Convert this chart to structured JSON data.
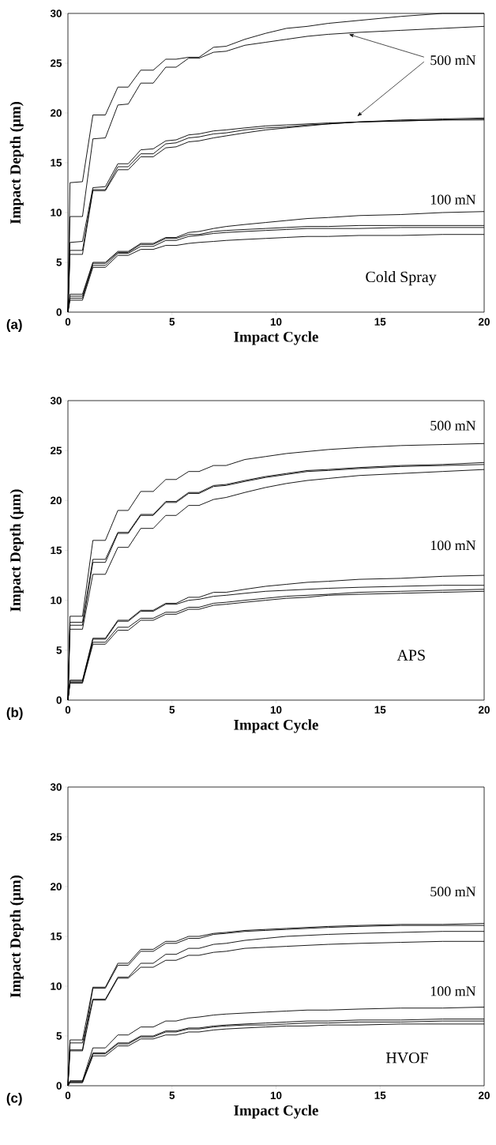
{
  "chart_data": [
    {
      "type": "line",
      "xlabel": "Impact Cycle",
      "ylabel": "Impact Depth (μm)",
      "xlim": [
        0,
        20
      ],
      "ylim": [
        0,
        30
      ],
      "xticks": [
        0,
        5,
        10,
        15,
        20
      ],
      "yticks": [
        0,
        5,
        10,
        15,
        20,
        25,
        30
      ],
      "annotations": [
        {
          "text": "500 mN",
          "x": 13.5,
          "y": 27.9
        },
        "100 mN",
        "Cold Spray",
        "(a)"
      ],
      "x": [
        0,
        0.1,
        0.7,
        1.2,
        1.8,
        2.4,
        2.9,
        3.5,
        4.1,
        4.7,
        5.2,
        5.8,
        6.3,
        7,
        7.6,
        8.5,
        9.5,
        10.5,
        11.5,
        12.5,
        14,
        16,
        18,
        20
      ],
      "series": [
        {
          "color": "#000000",
          "values": [
            0,
            13,
            13.1,
            19.8,
            19.8,
            22.6,
            22.6,
            24.3,
            24.3,
            25.4,
            25.4,
            25.6,
            25.6,
            26.6,
            26.7,
            27.4,
            28,
            28.5,
            28.7,
            29,
            29.3,
            29.7,
            30,
            30
          ]
        },
        {
          "color": "#000000",
          "values": [
            0,
            9.6,
            9.6,
            17.4,
            17.5,
            20.8,
            20.9,
            23,
            23,
            24.6,
            24.6,
            25.5,
            25.5,
            26.1,
            26.2,
            26.8,
            27.1,
            27.4,
            27.7,
            27.9,
            28.1,
            28.3,
            28.5,
            28.7
          ]
        },
        {
          "color": "#000000",
          "values": [
            0,
            7,
            7.1,
            12.5,
            12.6,
            14.9,
            14.9,
            16.3,
            16.4,
            17.2,
            17.3,
            17.8,
            17.9,
            18.2,
            18.3,
            18.5,
            18.7,
            18.8,
            18.9,
            19,
            19.1,
            19.3,
            19.4,
            19.5
          ]
        },
        {
          "color": "#000000",
          "values": [
            0,
            6.2,
            6.2,
            12.3,
            12.3,
            14.6,
            14.6,
            15.9,
            15.9,
            16.9,
            17,
            17.5,
            17.6,
            17.9,
            18,
            18.3,
            18.5,
            18.6,
            18.8,
            18.9,
            19.1,
            19.2,
            19.3,
            19.4
          ]
        },
        {
          "color": "#000000",
          "values": [
            0,
            5.8,
            5.8,
            12.2,
            12.2,
            14.3,
            14.3,
            15.6,
            15.6,
            16.5,
            16.6,
            17.1,
            17.2,
            17.5,
            17.7,
            18,
            18.3,
            18.5,
            18.7,
            18.9,
            19.1,
            19.2,
            19.3,
            19.3
          ]
        },
        {
          "color": "#000000",
          "values": [
            0,
            1.8,
            1.8,
            5,
            5,
            6.1,
            6.1,
            6.9,
            6.9,
            7.5,
            7.5,
            8,
            8.1,
            8.4,
            8.6,
            8.8,
            9,
            9.2,
            9.4,
            9.5,
            9.7,
            9.8,
            10,
            10.1
          ]
        },
        {
          "color": "#000000",
          "values": [
            0,
            1.6,
            1.6,
            4.9,
            4.9,
            6,
            6,
            6.8,
            6.8,
            7.4,
            7.4,
            7.8,
            7.8,
            8.1,
            8.2,
            8.3,
            8.4,
            8.5,
            8.6,
            8.6,
            8.7,
            8.7,
            8.7,
            8.7
          ]
        },
        {
          "color": "#000000",
          "values": [
            0,
            1.4,
            1.4,
            4.7,
            4.7,
            5.9,
            5.9,
            6.6,
            6.6,
            7.2,
            7.2,
            7.6,
            7.7,
            7.9,
            8,
            8.1,
            8.2,
            8.3,
            8.4,
            8.4,
            8.4,
            8.5,
            8.5,
            8.5
          ]
        },
        {
          "color": "#000000",
          "values": [
            0,
            1.2,
            1.2,
            4.5,
            4.5,
            5.7,
            5.7,
            6.3,
            6.3,
            6.7,
            6.7,
            6.9,
            7,
            7.1,
            7.2,
            7.3,
            7.4,
            7.5,
            7.6,
            7.6,
            7.7,
            7.7,
            7.8,
            7.8
          ]
        }
      ]
    },
    {
      "type": "line",
      "xlabel": "Impact Cycle",
      "ylabel": "Impact Depth (μm)",
      "xlim": [
        0,
        20
      ],
      "ylim": [
        0,
        30
      ],
      "xticks": [
        0,
        5,
        10,
        15,
        20
      ],
      "yticks": [
        0,
        5,
        10,
        15,
        20,
        25,
        30
      ],
      "annotations": [
        "500 mN",
        "100 mN",
        "APS",
        "(b)"
      ],
      "x": [
        0,
        0.1,
        0.7,
        1.2,
        1.8,
        2.4,
        2.9,
        3.5,
        4.1,
        4.7,
        5.2,
        5.8,
        6.3,
        7,
        7.6,
        8.5,
        9.5,
        10.5,
        11.5,
        12.5,
        14,
        16,
        18,
        20
      ],
      "series": [
        {
          "color": "#000000",
          "values": [
            0,
            8.4,
            8.4,
            16,
            16,
            19,
            19,
            20.9,
            20.9,
            22.1,
            22.1,
            22.9,
            22.9,
            23.5,
            23.5,
            24.1,
            24.4,
            24.7,
            24.9,
            25.1,
            25.3,
            25.5,
            25.6,
            25.7
          ]
        },
        {
          "color": "#000000",
          "values": [
            0,
            7.8,
            7.8,
            14.1,
            14.1,
            16.8,
            16.8,
            18.6,
            18.6,
            19.9,
            19.9,
            20.8,
            20.8,
            21.5,
            21.6,
            22,
            22.4,
            22.7,
            23,
            23.1,
            23.3,
            23.5,
            23.6,
            23.8
          ]
        },
        {
          "color": "#000000",
          "values": [
            0,
            7.5,
            7.5,
            13.8,
            13.8,
            16.7,
            16.7,
            18.5,
            18.5,
            19.8,
            19.8,
            20.7,
            20.7,
            21.4,
            21.5,
            21.9,
            22.3,
            22.6,
            22.9,
            23,
            23.2,
            23.4,
            23.5,
            23.6
          ]
        },
        {
          "color": "#000000",
          "values": [
            0,
            7.1,
            7.1,
            12.6,
            12.6,
            15.3,
            15.3,
            17.2,
            17.2,
            18.5,
            18.5,
            19.5,
            19.5,
            20.1,
            20.3,
            20.8,
            21.3,
            21.7,
            22,
            22.2,
            22.5,
            22.7,
            22.9,
            23.1
          ]
        },
        {
          "color": "#000000",
          "values": [
            0,
            2,
            2,
            6.2,
            6.2,
            8,
            8,
            9,
            9,
            9.7,
            9.7,
            10.3,
            10.3,
            10.8,
            10.8,
            11.1,
            11.4,
            11.6,
            11.8,
            11.9,
            12.1,
            12.2,
            12.4,
            12.5
          ]
        },
        {
          "color": "#000000",
          "values": [
            0,
            1.9,
            1.9,
            6.1,
            6.1,
            7.9,
            7.9,
            8.9,
            8.9,
            9.6,
            9.6,
            10,
            10.1,
            10.4,
            10.5,
            10.7,
            10.9,
            11,
            11.1,
            11.2,
            11.3,
            11.4,
            11.5,
            11.5
          ]
        },
        {
          "color": "#000000",
          "values": [
            0,
            1.8,
            1.8,
            5.8,
            5.8,
            7.3,
            7.3,
            8.2,
            8.2,
            8.8,
            8.8,
            9.3,
            9.3,
            9.7,
            9.8,
            10,
            10.2,
            10.4,
            10.5,
            10.6,
            10.8,
            10.9,
            11,
            11.1
          ]
        },
        {
          "color": "#000000",
          "values": [
            0,
            1.7,
            1.7,
            5.6,
            5.6,
            7,
            7,
            8,
            8,
            8.6,
            8.6,
            9.1,
            9.1,
            9.5,
            9.6,
            9.8,
            10,
            10.2,
            10.3,
            10.5,
            10.6,
            10.7,
            10.8,
            10.9
          ]
        }
      ]
    },
    {
      "type": "line",
      "xlabel": "Impact Cycle",
      "ylabel": "Impact Depth (μm)",
      "xlim": [
        0,
        20
      ],
      "ylim": [
        0,
        30
      ],
      "xticks": [
        0,
        5,
        10,
        15,
        20
      ],
      "yticks": [
        0,
        5,
        10,
        15,
        20,
        25,
        30
      ],
      "annotations": [
        "500 mN",
        "100 mN",
        "HVOF",
        "(c)"
      ],
      "x": [
        0,
        0.1,
        0.7,
        1.2,
        1.8,
        2.4,
        2.9,
        3.5,
        4.1,
        4.7,
        5.2,
        5.8,
        6.3,
        7,
        7.6,
        8.5,
        9.5,
        10.5,
        11.5,
        12.5,
        14,
        16,
        18,
        20
      ],
      "series": [
        {
          "color": "#000000",
          "values": [
            0,
            4.6,
            4.6,
            9.9,
            9.9,
            12.3,
            12.3,
            13.7,
            13.7,
            14.5,
            14.5,
            15,
            15,
            15.3,
            15.4,
            15.6,
            15.7,
            15.8,
            15.9,
            16,
            16.1,
            16.2,
            16.2,
            16.3
          ]
        },
        {
          "color": "#000000",
          "values": [
            0,
            3.6,
            3.6,
            9.8,
            9.8,
            12.1,
            12.1,
            13.5,
            13.5,
            14.3,
            14.3,
            14.8,
            14.8,
            15.2,
            15.3,
            15.5,
            15.6,
            15.7,
            15.8,
            15.9,
            16,
            16.1,
            16.1,
            16.1
          ]
        },
        {
          "color": "#000000",
          "values": [
            0,
            4.3,
            4.3,
            8.7,
            8.7,
            10.9,
            10.9,
            12.3,
            12.3,
            13.2,
            13.2,
            13.8,
            13.8,
            14.2,
            14.3,
            14.6,
            14.8,
            15,
            15.1,
            15.2,
            15.3,
            15.4,
            15.5,
            15.5
          ]
        },
        {
          "color": "#000000",
          "values": [
            0,
            3.5,
            3.5,
            8.6,
            8.6,
            10.8,
            10.8,
            11.9,
            11.9,
            12.6,
            12.6,
            13.1,
            13.1,
            13.4,
            13.5,
            13.8,
            13.9,
            14,
            14.1,
            14.2,
            14.3,
            14.4,
            14.5,
            14.5
          ]
        },
        {
          "color": "#000000",
          "values": [
            0,
            0.5,
            0.5,
            3.8,
            3.8,
            5.1,
            5.1,
            5.9,
            5.9,
            6.5,
            6.5,
            6.8,
            6.9,
            7.1,
            7.2,
            7.3,
            7.4,
            7.5,
            7.6,
            7.6,
            7.7,
            7.8,
            7.8,
            7.9
          ]
        },
        {
          "color": "#000000",
          "values": [
            0,
            0.4,
            0.4,
            3.3,
            3.3,
            4.3,
            4.3,
            5,
            5,
            5.5,
            5.5,
            5.8,
            5.8,
            6,
            6.1,
            6.2,
            6.3,
            6.4,
            6.5,
            6.5,
            6.6,
            6.6,
            6.7,
            6.7
          ]
        },
        {
          "color": "#000000",
          "values": [
            0,
            0.4,
            0.4,
            3.2,
            3.2,
            4.2,
            4.2,
            4.9,
            4.9,
            5.4,
            5.4,
            5.7,
            5.7,
            5.9,
            6,
            6.1,
            6.1,
            6.2,
            6.3,
            6.3,
            6.4,
            6.4,
            6.5,
            6.5
          ]
        },
        {
          "color": "#000000",
          "values": [
            0,
            0.3,
            0.3,
            3,
            3,
            4,
            4,
            4.7,
            4.7,
            5.1,
            5.1,
            5.4,
            5.4,
            5.6,
            5.7,
            5.8,
            5.9,
            6,
            6,
            6.1,
            6.1,
            6.2,
            6.2,
            6.2
          ]
        }
      ]
    }
  ]
}
